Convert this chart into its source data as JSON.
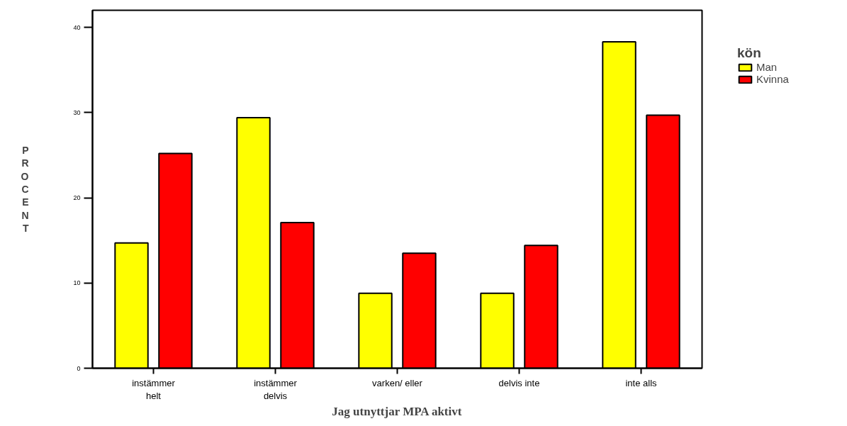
{
  "chart_data": {
    "type": "bar",
    "xlabel": "Jag utnyttjar MPA aktivt",
    "ylabel": "PROCENT",
    "legend_title": "kön",
    "categories": [
      "instämmer\nhelt",
      "instämmer\ndelvis",
      "varken/ eller",
      "delvis inte",
      "inte alls"
    ],
    "series": [
      {
        "name": "Man",
        "color": "#ffff00",
        "values": [
          14.7,
          29.4,
          8.8,
          8.8,
          38.3
        ]
      },
      {
        "name": "Kvinna",
        "color": "#ff0000",
        "values": [
          25.2,
          17.1,
          13.5,
          14.4,
          29.7
        ]
      }
    ],
    "ylim": [
      0,
      42
    ],
    "yticks": [
      0,
      10,
      20,
      30,
      40
    ],
    "grid": false,
    "legend": "top right"
  }
}
